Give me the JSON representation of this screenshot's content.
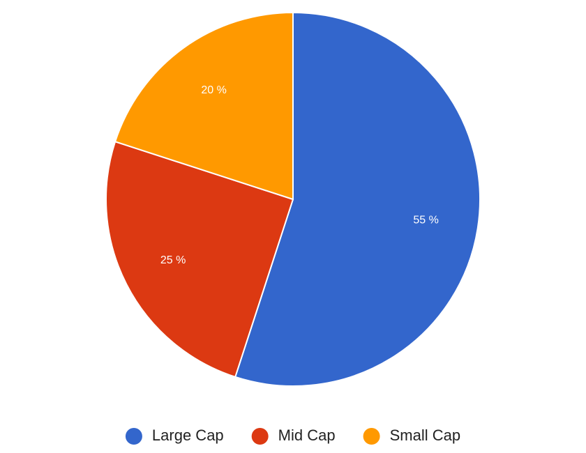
{
  "chart_data": {
    "type": "pie",
    "categories": [
      "Large Cap",
      "Mid Cap",
      "Small Cap"
    ],
    "values": [
      55,
      25,
      20
    ],
    "labels": [
      "55 %",
      "25 %",
      "20 %"
    ],
    "colors": [
      "#3366cc",
      "#dc3912",
      "#ff9900"
    ],
    "start_angle_deg": 0,
    "direction": "clockwise",
    "legend_position": "bottom"
  }
}
